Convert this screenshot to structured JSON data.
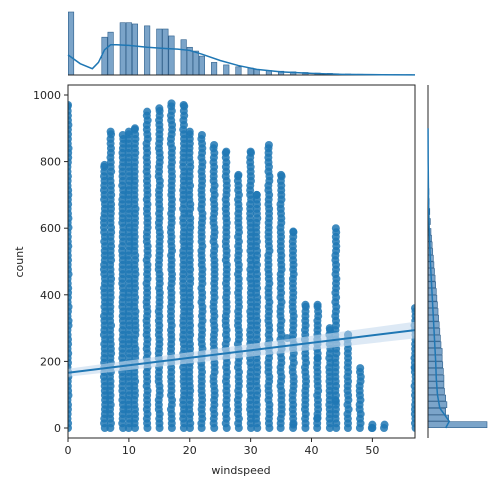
{
  "chart_data": {
    "type": "scatter",
    "xlabel": "windspeed",
    "ylabel": "count",
    "xlim": [
      0,
      57
    ],
    "ylim": [
      -30,
      1030
    ],
    "x_ticks": [
      "0",
      "10",
      "20",
      "30",
      "40",
      "50"
    ],
    "y_ticks": [
      "0",
      "200",
      "400",
      "600",
      "800",
      "1000"
    ],
    "colors": {
      "points": "#1f77b4",
      "bars": "#7ba4c9",
      "bar_edge": "#2b5d8a",
      "ci_band": "#c7dbee"
    },
    "regression": {
      "x": [
        0,
        57
      ],
      "y": [
        166,
        294
      ]
    },
    "columns": [
      {
        "x": 0,
        "max": 970
      },
      {
        "x": 6,
        "max": 790
      },
      {
        "x": 7,
        "max": 890
      },
      {
        "x": 9,
        "max": 880
      },
      {
        "x": 10,
        "max": 890
      },
      {
        "x": 11,
        "max": 900
      },
      {
        "x": 13,
        "max": 950
      },
      {
        "x": 15,
        "max": 960
      },
      {
        "x": 17,
        "max": 975
      },
      {
        "x": 19,
        "max": 970
      },
      {
        "x": 20,
        "max": 890
      },
      {
        "x": 22,
        "max": 880
      },
      {
        "x": 24,
        "max": 850
      },
      {
        "x": 26,
        "max": 830
      },
      {
        "x": 28,
        "max": 760
      },
      {
        "x": 30,
        "max": 830
      },
      {
        "x": 31,
        "max": 700
      },
      {
        "x": 33,
        "max": 850
      },
      {
        "x": 35,
        "max": 760
      },
      {
        "x": 37,
        "max": 590
      },
      {
        "x": 39,
        "max": 370
      },
      {
        "x": 41,
        "max": 370
      },
      {
        "x": 43,
        "max": 300
      },
      {
        "x": 44,
        "max": 600
      },
      {
        "x": 46,
        "max": 280
      },
      {
        "x": 48,
        "max": 180
      },
      {
        "x": 50,
        "max": 0
      },
      {
        "x": 52,
        "max": 10
      },
      {
        "x": 57,
        "max": 360
      }
    ],
    "stray_points": [
      {
        "x": 57,
        "y": 180
      },
      {
        "x": 50,
        "y": 10
      },
      {
        "x": 46,
        "y": 280
      },
      {
        "x": 44,
        "y": 80
      },
      {
        "x": 41,
        "y": 30
      },
      {
        "x": 37,
        "y": 10
      },
      {
        "x": 36,
        "y": 270
      },
      {
        "x": 41,
        "y": 210
      }
    ],
    "x_marginal": {
      "bins_x": [
        0.5,
        6,
        7,
        9,
        10,
        11,
        13,
        15,
        16,
        17,
        19,
        20,
        21,
        22,
        24,
        26,
        28,
        30,
        31,
        33,
        35,
        37,
        39,
        41,
        43,
        44,
        46,
        48,
        50,
        52,
        54,
        56
      ],
      "counts": [
        1,
        0.6,
        0.68,
        0.83,
        0.83,
        0.81,
        0.78,
        0.73,
        0.73,
        0.62,
        0.56,
        0.44,
        0.38,
        0.3,
        0.2,
        0.16,
        0.13,
        0.11,
        0.09,
        0.07,
        0.06,
        0.05,
        0.04,
        0.03,
        0.025,
        0.02,
        0.015,
        0.012,
        0.01,
        0.008,
        0.006,
        0.005
      ],
      "kde_x": [
        0,
        2,
        4,
        5,
        6,
        7,
        8,
        10,
        13,
        16,
        18,
        20,
        22,
        25,
        28,
        31,
        35,
        40,
        45,
        50,
        57
      ],
      "kde_y": [
        0.32,
        0.18,
        0.1,
        0.2,
        0.4,
        0.48,
        0.48,
        0.47,
        0.44,
        0.42,
        0.41,
        0.39,
        0.33,
        0.23,
        0.15,
        0.09,
        0.05,
        0.025,
        0.01,
        0.005,
        0.002
      ]
    },
    "y_marginal": {
      "bins_y": [
        10,
        30,
        50,
        70,
        90,
        110,
        130,
        150,
        170,
        190,
        210,
        230,
        250,
        270,
        290,
        310,
        330,
        350,
        370,
        390,
        410,
        430,
        450,
        470,
        490,
        510,
        530,
        550,
        570,
        590,
        620,
        650,
        680,
        710,
        740
      ],
      "counts": [
        1,
        0.35,
        0.3,
        0.32,
        0.3,
        0.28,
        0.27,
        0.27,
        0.26,
        0.25,
        0.24,
        0.24,
        0.22,
        0.21,
        0.2,
        0.19,
        0.18,
        0.17,
        0.16,
        0.15,
        0.14,
        0.13,
        0.12,
        0.11,
        0.1,
        0.09,
        0.08,
        0.07,
        0.06,
        0.05,
        0.04,
        0.03,
        0.02,
        0.015,
        0.01
      ],
      "kde_y": [
        0,
        20,
        40,
        60,
        100,
        150,
        200,
        300,
        400,
        500,
        600,
        700,
        800,
        900
      ],
      "kde_x": [
        0.3,
        0.36,
        0.28,
        0.2,
        0.16,
        0.14,
        0.13,
        0.1,
        0.07,
        0.04,
        0.02,
        0.008,
        0.003,
        0.001
      ]
    }
  }
}
